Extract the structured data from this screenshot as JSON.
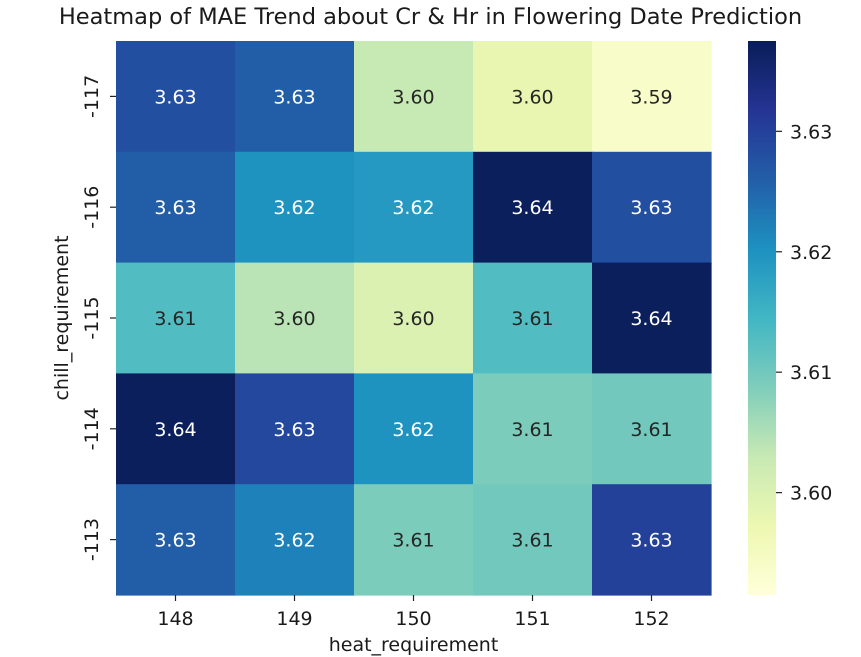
{
  "chart_data": {
    "type": "heatmap",
    "title": "Heatmap of MAE Trend about Cr & Hr in Flowering Date Prediction",
    "xlabel": "heat_requirement",
    "ylabel": "chill_requirement",
    "x_categories": [
      "148",
      "149",
      "150",
      "151",
      "152"
    ],
    "y_categories": [
      "-117",
      "-116",
      "-115",
      "-114",
      "-113"
    ],
    "values": [
      [
        3.628,
        3.626,
        3.603,
        3.598,
        3.594
      ],
      [
        3.626,
        3.62,
        3.619,
        3.637,
        3.628
      ],
      [
        3.613,
        3.604,
        3.6,
        3.613,
        3.637
      ],
      [
        3.637,
        3.629,
        3.62,
        3.609,
        3.61
      ],
      [
        3.626,
        3.622,
        3.609,
        3.61,
        3.63
      ]
    ],
    "annotations": [
      [
        "3.63",
        "3.63",
        "3.60",
        "3.60",
        "3.59"
      ],
      [
        "3.63",
        "3.62",
        "3.62",
        "3.64",
        "3.63"
      ],
      [
        "3.61",
        "3.60",
        "3.60",
        "3.61",
        "3.64"
      ],
      [
        "3.64",
        "3.63",
        "3.62",
        "3.61",
        "3.61"
      ],
      [
        "3.63",
        "3.62",
        "3.61",
        "3.61",
        "3.63"
      ]
    ],
    "colormap": "YlGnBu",
    "colorbar": {
      "vmin": 3.5915,
      "vmax": 3.6375,
      "ticks": [
        3.6,
        3.61,
        3.62,
        3.63
      ],
      "tick_labels": [
        "3.60",
        "3.61",
        "3.62",
        "3.63"
      ]
    },
    "colormap_stops": [
      "#ffffd9",
      "#edf8b1",
      "#c7e9b4",
      "#7fcdbb",
      "#41b6c4",
      "#1d91c0",
      "#225ea8",
      "#253494",
      "#081d58"
    ]
  }
}
